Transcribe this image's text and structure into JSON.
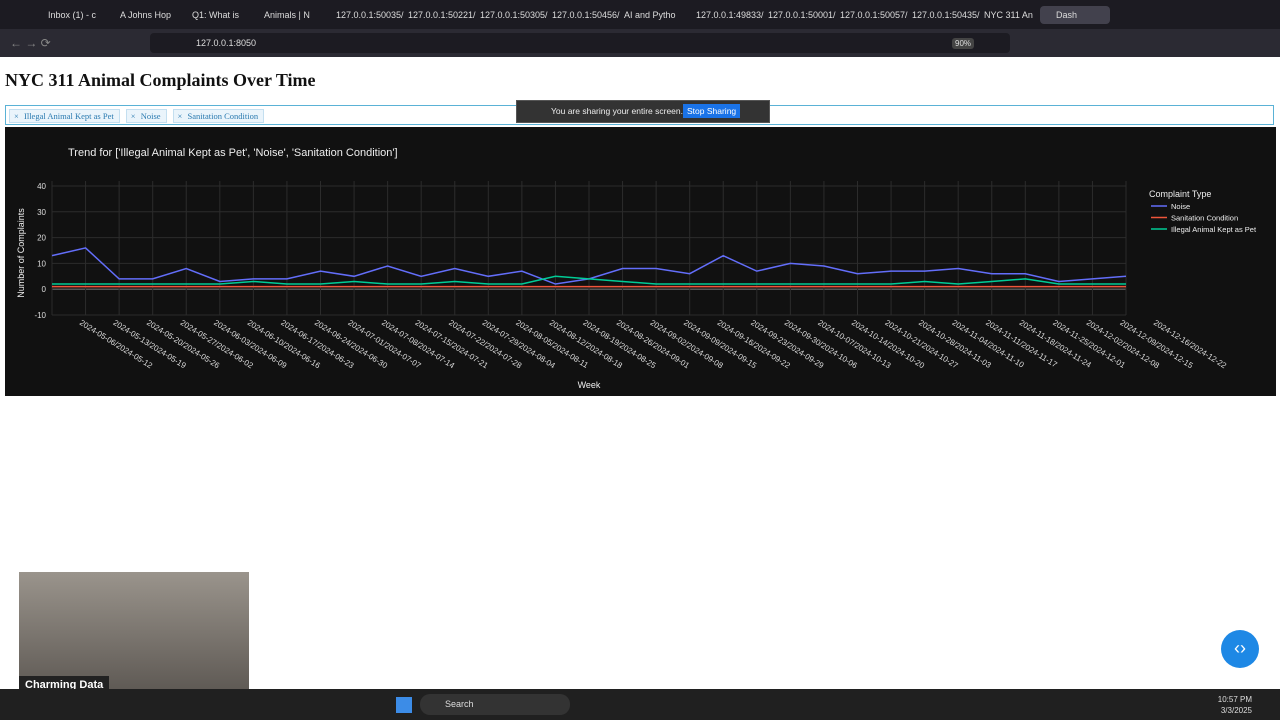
{
  "browser": {
    "tabs": [
      "Inbox (1) - c",
      "A Johns Hop",
      "Q1: What is",
      "Animals | N",
      "127.0.0.1:50035/",
      "127.0.0.1:50221/",
      "127.0.0.1:50305/",
      "127.0.0.1:50456/",
      "AI and Pytho",
      "127.0.0.1:49833/",
      "127.0.0.1:50001/",
      "127.0.0.1:50057/",
      "127.0.0.1:50435/",
      "NYC 311 An",
      "Dash"
    ],
    "address": "127.0.0.1:8050",
    "zoom": "90%"
  },
  "sharing_bar": {
    "message": "You are sharing your entire screen.",
    "button": "Stop Sharing"
  },
  "page": {
    "title": "NYC 311 Animal Complaints Over Time",
    "selected": [
      "Illegal Animal Kept as Pet",
      "Noise",
      "Sanitation Condition"
    ]
  },
  "chart_data": {
    "type": "line",
    "title": "Trend for ['Illegal Animal Kept as Pet', 'Noise', 'Sanitation Condition']",
    "x_label": "Week",
    "y_label": "Number of Complaints",
    "legend_title": "Complaint Type",
    "categories": [
      "2024-05-06/2024-05-12",
      "2024-05-13/2024-05-19",
      "2024-05-20/2024-05-26",
      "2024-05-27/2024-06-02",
      "2024-06-03/2024-06-09",
      "2024-06-10/2024-06-16",
      "2024-06-17/2024-06-23",
      "2024-06-24/2024-06-30",
      "2024-07-01/2024-07-07",
      "2024-07-08/2024-07-14",
      "2024-07-15/2024-07-21",
      "2024-07-22/2024-07-28",
      "2024-07-29/2024-08-04",
      "2024-08-05/2024-08-11",
      "2024-08-12/2024-08-18",
      "2024-08-19/2024-08-25",
      "2024-08-26/2024-09-01",
      "2024-09-02/2024-09-08",
      "2024-09-09/2024-09-15",
      "2024-09-16/2024-09-22",
      "2024-09-23/2024-09-29",
      "2024-09-30/2024-10-06",
      "2024-10-07/2024-10-13",
      "2024-10-14/2024-10-20",
      "2024-10-21/2024-10-27",
      "2024-10-28/2024-11-03",
      "2024-11-04/2024-11-10",
      "2024-11-11/2024-11-17",
      "2024-11-18/2024-11-24",
      "2024-11-25/2024-12-01",
      "2024-12-02/2024-12-08",
      "2024-12-09/2024-12-15",
      "2024-12-16/2024-12-22"
    ],
    "series": [
      {
        "name": "Noise",
        "color": "#636efa",
        "values": [
          13,
          16,
          4,
          4,
          8,
          3,
          4,
          4,
          7,
          5,
          9,
          5,
          8,
          5,
          7,
          2,
          4,
          8,
          8,
          6,
          13,
          7,
          10,
          9,
          6,
          7,
          7,
          8,
          6,
          6,
          3,
          4,
          5
        ]
      },
      {
        "name": "Sanitation Condition",
        "color": "#ef553b",
        "values": [
          1,
          1,
          1,
          1,
          1,
          1,
          1,
          1,
          1,
          1,
          1,
          1,
          1,
          1,
          1,
          1,
          1,
          1,
          1,
          1,
          1,
          1,
          1,
          1,
          1,
          1,
          1,
          1,
          1,
          1,
          1,
          1,
          1
        ]
      },
      {
        "name": "Illegal Animal Kept as Pet",
        "color": "#00cc96",
        "values": [
          2,
          2,
          2,
          2,
          2,
          2,
          3,
          2,
          2,
          3,
          2,
          2,
          3,
          2,
          2,
          5,
          4,
          3,
          2,
          2,
          2,
          2,
          2,
          2,
          2,
          2,
          3,
          2,
          3,
          4,
          2,
          2,
          2
        ]
      }
    ],
    "ylim": [
      -10,
      40
    ],
    "yticks": [
      -10,
      0,
      10,
      20,
      30,
      40
    ],
    "grid": true
  },
  "webcam": {
    "label": "Charming Data"
  },
  "taskbar": {
    "search": "Search",
    "time": "10:57 PM",
    "date": "3/3/2025"
  }
}
